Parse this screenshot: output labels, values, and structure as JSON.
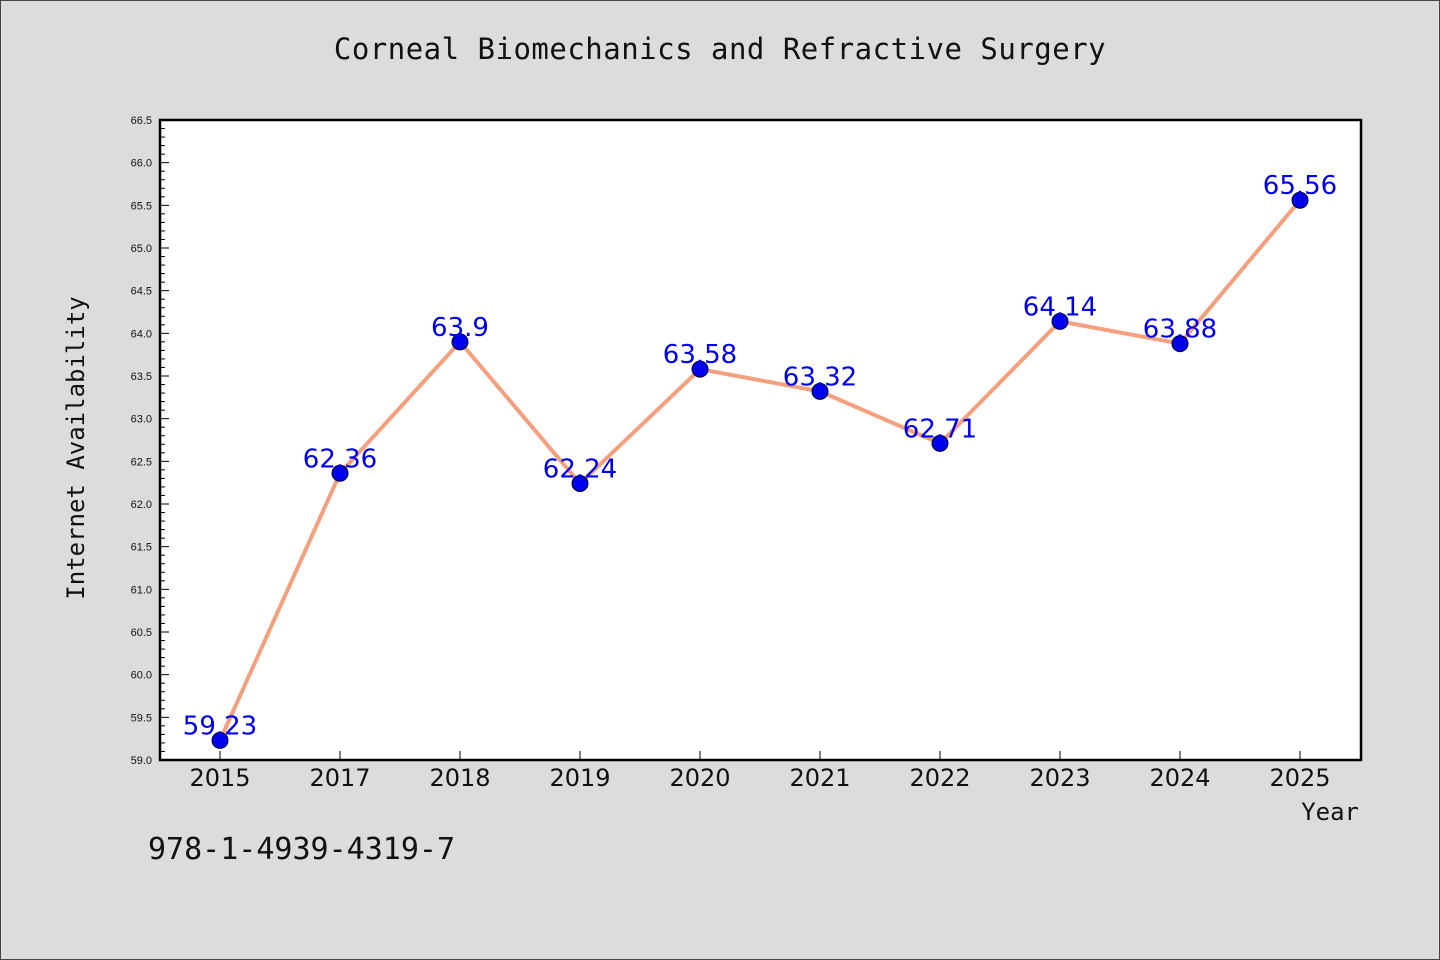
{
  "chart_data": {
    "type": "line",
    "title": "Corneal Biomechanics and Refractive Surgery",
    "xlabel": "Year",
    "ylabel": "Internet Availability",
    "categories": [
      "2015",
      "2017",
      "2018",
      "2019",
      "2020",
      "2021",
      "2022",
      "2023",
      "2024",
      "2025"
    ],
    "series": [
      {
        "values": [
          59.23,
          62.36,
          63.9,
          62.24,
          63.58,
          63.32,
          62.71,
          64.14,
          63.88,
          65.56
        ],
        "data_labels": [
          "59.23",
          "62.36",
          "63.9",
          "62.24",
          "63.58",
          "63.32",
          "62.71",
          "64.14",
          "63.88",
          "65.56"
        ],
        "line_color": "#f4a07e",
        "marker_color": "#0000ee"
      }
    ],
    "ylim": [
      59.0,
      66.5
    ],
    "yticks": [
      "59.0",
      "59.5",
      "60.0",
      "60.5",
      "61.0",
      "61.5",
      "62.0",
      "62.5",
      "63.0",
      "63.5",
      "64.0",
      "64.5",
      "65.0",
      "65.5",
      "66.0",
      "66.5"
    ],
    "grid": false,
    "legend": "none",
    "background_color": "#dcdcdc",
    "plot_background": "#ffffff"
  },
  "footer": {
    "isbn": "978-1-4939-4319-7"
  }
}
